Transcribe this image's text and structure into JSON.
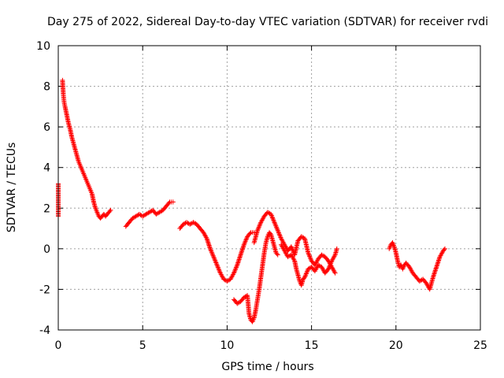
{
  "chart_data": {
    "type": "scatter",
    "title": "Day 275 of 2022, Sidereal Day-to-day VTEC variation (SDTVAR) for receiver rvdi",
    "xlabel": "GPS time / hours",
    "ylabel": "SDTVAR / TECUs",
    "xlim": [
      0,
      25
    ],
    "ylim": [
      -4,
      10
    ],
    "xticks": [
      0,
      5,
      10,
      15,
      20,
      25
    ],
    "yticks": [
      -4,
      -2,
      0,
      2,
      4,
      6,
      8,
      10
    ],
    "grid": true,
    "marker": "plus",
    "color": "#ff0000",
    "series": [
      {
        "name": "SDTVAR",
        "segments": [
          {
            "x": [
              0.0,
              0.0
            ],
            "y": [
              3.2,
              1.6
            ]
          },
          {
            "x": [
              0.25,
              0.3,
              0.35,
              0.4,
              0.5,
              0.6,
              0.7,
              0.8,
              0.9,
              1.0,
              1.1,
              1.2,
              1.3,
              1.4,
              1.5,
              1.6,
              1.7,
              1.8,
              1.9,
              2.0,
              2.1,
              2.2,
              2.3,
              2.4,
              2.5,
              2.6,
              2.7,
              2.8,
              2.9,
              3.0,
              3.1
            ],
            "y": [
              8.3,
              7.6,
              7.2,
              7.0,
              6.6,
              6.2,
              5.9,
              5.5,
              5.2,
              4.9,
              4.6,
              4.3,
              4.1,
              3.9,
              3.7,
              3.5,
              3.3,
              3.1,
              2.9,
              2.7,
              2.3,
              2.0,
              1.8,
              1.6,
              1.5,
              1.6,
              1.7,
              1.6,
              1.7,
              1.8,
              1.9
            ]
          },
          {
            "x": [
              4.0,
              4.2,
              4.4,
              4.6,
              4.8,
              5.0,
              5.2,
              5.4,
              5.6,
              5.8,
              6.0,
              6.2,
              6.4,
              6.6,
              6.8
            ],
            "y": [
              1.1,
              1.3,
              1.5,
              1.6,
              1.7,
              1.6,
              1.7,
              1.8,
              1.9,
              1.7,
              1.8,
              1.9,
              2.1,
              2.3,
              2.3
            ]
          },
          {
            "x": [
              7.2,
              7.4,
              7.6,
              7.8,
              8.0,
              8.2,
              8.4,
              8.6,
              8.8,
              9.0,
              9.2,
              9.4,
              9.6,
              9.8,
              10.0,
              10.2,
              10.4,
              10.6,
              10.8,
              11.0,
              11.2,
              11.4,
              11.6
            ],
            "y": [
              1.0,
              1.2,
              1.3,
              1.2,
              1.3,
              1.2,
              1.0,
              0.8,
              0.5,
              0.0,
              -0.4,
              -0.8,
              -1.2,
              -1.5,
              -1.6,
              -1.5,
              -1.2,
              -0.8,
              -0.3,
              0.2,
              0.6,
              0.8,
              0.8
            ]
          },
          {
            "x": [
              10.4,
              10.6,
              10.8,
              11.0,
              11.2,
              11.3,
              11.4,
              11.5,
              11.6,
              11.7,
              11.8,
              11.9,
              12.0,
              12.1,
              12.2,
              12.3,
              12.4,
              12.5,
              12.6,
              12.7,
              12.8,
              12.9,
              13.0
            ],
            "y": [
              -2.5,
              -2.7,
              -2.6,
              -2.4,
              -2.3,
              -3.2,
              -3.5,
              -3.6,
              -3.4,
              -3.0,
              -2.5,
              -2.0,
              -1.4,
              -0.8,
              -0.2,
              0.3,
              0.6,
              0.8,
              0.7,
              0.4,
              0.1,
              -0.2,
              -0.3
            ]
          },
          {
            "x": [
              11.6,
              11.8,
              12.0,
              12.2,
              12.4,
              12.6,
              12.8,
              13.0,
              13.2,
              13.4,
              13.6,
              13.8,
              14.0,
              14.2,
              14.4,
              14.6,
              14.8,
              15.0,
              15.2,
              15.4,
              15.6,
              15.8,
              16.0,
              16.2,
              16.4
            ],
            "y": [
              0.3,
              0.9,
              1.3,
              1.6,
              1.8,
              1.7,
              1.3,
              0.9,
              0.5,
              0.2,
              -0.1,
              0.1,
              -0.3,
              0.4,
              0.6,
              0.5,
              -0.2,
              -0.6,
              -0.8,
              -0.5,
              -0.3,
              -0.4,
              -0.6,
              -0.9,
              -1.2
            ]
          },
          {
            "x": [
              13.2,
              13.4,
              13.6,
              13.8,
              14.0,
              14.1,
              14.2,
              14.3,
              14.4,
              14.5,
              14.6,
              14.8,
              15.0,
              15.2,
              15.4,
              15.6,
              15.8,
              16.0,
              16.2,
              16.4,
              16.5
            ],
            "y": [
              0.2,
              -0.1,
              -0.4,
              -0.3,
              -0.6,
              -1.0,
              -1.3,
              -1.6,
              -1.8,
              -1.5,
              -1.4,
              -1.0,
              -0.9,
              -1.1,
              -0.8,
              -0.9,
              -1.2,
              -1.0,
              -0.6,
              -0.3,
              0.0
            ]
          },
          {
            "x": [
              19.6,
              19.7,
              19.8,
              19.9,
              20.0,
              20.1,
              20.2,
              20.3,
              20.4,
              20.5,
              20.6,
              20.8,
              21.0,
              21.2,
              21.4,
              21.6,
              21.8,
              22.0,
              22.1,
              22.2,
              22.4,
              22.6,
              22.8,
              22.9
            ],
            "y": [
              0.0,
              0.2,
              0.3,
              0.1,
              -0.2,
              -0.6,
              -0.9,
              -0.8,
              -1.0,
              -0.8,
              -0.7,
              -0.9,
              -1.2,
              -1.4,
              -1.6,
              -1.5,
              -1.7,
              -2.0,
              -1.7,
              -1.4,
              -0.9,
              -0.4,
              -0.1,
              0.0
            ]
          }
        ]
      }
    ]
  }
}
